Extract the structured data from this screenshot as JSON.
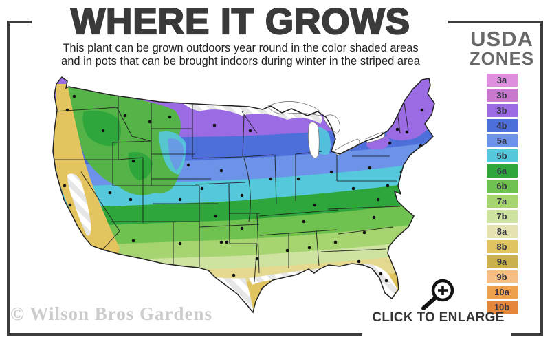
{
  "header": {
    "title": "WHERE IT GROWS",
    "subtitle_line1": "This plant can be grown outdoors year round in the color shaded areas",
    "subtitle_line2": "and in pots that can be brought indoors during winter in the striped area",
    "title_color": "#3a3a3a"
  },
  "legend": {
    "title_line1": "USDA",
    "title_line2": "ZONES",
    "title_color": "#686868",
    "zones": [
      {
        "label": "3a",
        "color": "#DE8FDE"
      },
      {
        "label": "3b",
        "color": "#C978CE"
      },
      {
        "label": "3b",
        "color": "#9A6BE2"
      },
      {
        "label": "4b",
        "color": "#4C6FDA"
      },
      {
        "label": "5a",
        "color": "#6D93E8"
      },
      {
        "label": "5b",
        "color": "#55C8DC"
      },
      {
        "label": "6a",
        "color": "#2FA63C"
      },
      {
        "label": "6b",
        "color": "#6FC24F"
      },
      {
        "label": "7a",
        "color": "#A6D471"
      },
      {
        "label": "7b",
        "color": "#CFE3A0"
      },
      {
        "label": "8a",
        "color": "#E6E3B2"
      },
      {
        "label": "8b",
        "color": "#DFC45F"
      },
      {
        "label": "9a",
        "color": "#CBB14B"
      },
      {
        "label": "9b",
        "color": "#F4BE85"
      },
      {
        "label": "10a",
        "color": "#EFA04C"
      },
      {
        "label": "10b",
        "color": "#E5873B"
      }
    ]
  },
  "map": {
    "dot_color": "#111111",
    "border_color": "#1c1c1c",
    "striped_area_colors": [
      "#ffffff",
      "#e6e6e6"
    ]
  },
  "footer": {
    "watermark": "© Wilson Bros Gardens",
    "enlarge_label": "CLICK TO ENLARGE",
    "magnifier_icon": "magnifying-glass-plus"
  },
  "frame": {
    "color": "#3c3c3c"
  }
}
